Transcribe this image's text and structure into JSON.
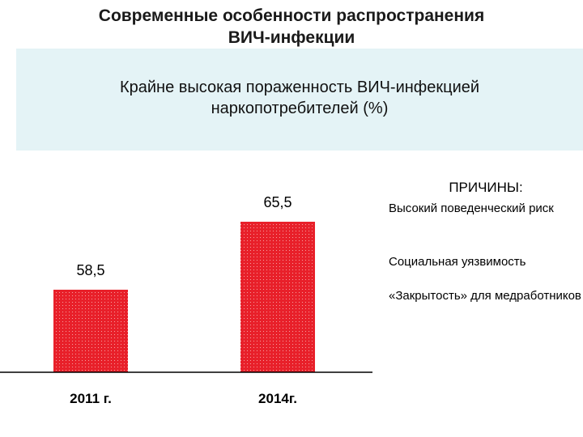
{
  "slide": {
    "title_line1": "Современные особенности распространения",
    "title_line2": "ВИЧ-инфекции",
    "subtitle_line1": "Крайне высокая пораженность ВИЧ-инфекцией",
    "subtitle_line2": "наркопотребителей (%)",
    "banner_color": "#e4f3f6"
  },
  "reasons": {
    "title": "ПРИЧИНЫ:",
    "items": [
      "Высокий поведенческий риск",
      "Социальная уязвимость",
      "«Закрытость» для медработников"
    ]
  },
  "chart_data": {
    "type": "bar",
    "categories": [
      "2011 г.",
      "2014г."
    ],
    "values": [
      58.5,
      65.5
    ],
    "value_labels": [
      "58,5",
      "65,5"
    ],
    "title": "",
    "xlabel": "",
    "ylabel": "",
    "ylim": [
      50,
      70
    ],
    "bar_color": "#e8202a",
    "grid": false,
    "legend": "none"
  }
}
